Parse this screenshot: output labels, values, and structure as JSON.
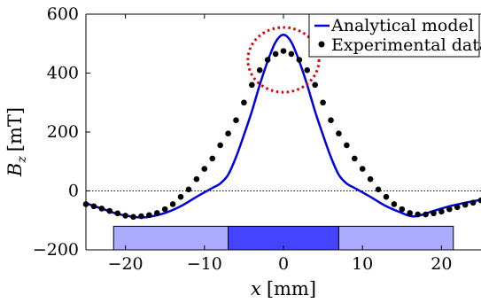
{
  "chart_data": {
    "type": "line",
    "title": "",
    "xlabel": {
      "symbol": "x",
      "unit": "[mm]"
    },
    "ylabel": {
      "symbol": "B",
      "subscript": "z",
      "unit": "[mT]"
    },
    "xlim": [
      -25,
      25
    ],
    "ylim": [
      -200,
      600
    ],
    "xticks": [
      -20,
      -10,
      0,
      10,
      20
    ],
    "yticks": [
      -200,
      0,
      200,
      400,
      600
    ],
    "xtick_labels": [
      "−20",
      "−10",
      "0",
      "10",
      "20"
    ],
    "ytick_labels": [
      "−200",
      "0",
      "200",
      "400",
      "600"
    ],
    "grid": false,
    "legend_position": "top-right",
    "zero_line": {
      "y": 0,
      "style": "dotted"
    },
    "series": [
      {
        "name": "Analytical model",
        "kind": "line",
        "color": "#0000dd",
        "x": [
          -25,
          -23,
          -21,
          -19,
          -18,
          -17,
          -15,
          -13,
          -11,
          -9,
          -8,
          -7,
          -6,
          -5,
          -4,
          -3,
          -2,
          -1,
          0,
          1,
          2,
          3,
          4,
          5,
          6,
          7,
          8,
          9,
          11,
          13,
          15,
          16,
          17,
          19,
          21,
          23,
          25
        ],
        "y": [
          -42,
          -60,
          -78,
          -88,
          -90,
          -88,
          -75,
          -52,
          -20,
          10,
          25,
          55,
          115,
          190,
          270,
          360,
          440,
          505,
          530,
          505,
          440,
          360,
          270,
          190,
          115,
          55,
          25,
          10,
          -20,
          -52,
          -75,
          -85,
          -85,
          -68,
          -52,
          -40,
          -30
        ]
      },
      {
        "name": "Experimental data",
        "kind": "scatter",
        "color": "#000000",
        "x": [
          -25,
          -24,
          -23,
          -22,
          -21,
          -20,
          -19,
          -18,
          -17,
          -16,
          -15,
          -14,
          -13,
          -12,
          -11,
          -10,
          -9,
          -8,
          -7,
          -6,
          -5,
          -4,
          -3,
          -2,
          -1,
          0,
          1,
          2,
          3,
          4,
          5,
          6,
          7,
          8,
          9,
          10,
          11,
          12,
          13,
          14,
          15,
          16,
          17,
          18,
          19,
          20,
          21,
          22,
          23,
          24,
          25
        ],
        "y": [
          -45,
          -52,
          -60,
          -68,
          -76,
          -84,
          -88,
          -86,
          -82,
          -75,
          -62,
          -45,
          -20,
          5,
          40,
          75,
          110,
          155,
          195,
          240,
          300,
          360,
          410,
          445,
          465,
          475,
          465,
          445,
          410,
          360,
          300,
          240,
          195,
          155,
          110,
          75,
          40,
          5,
          -20,
          -45,
          -62,
          -75,
          -80,
          -80,
          -76,
          -70,
          -62,
          -55,
          -47,
          -40,
          -32
        ]
      }
    ],
    "highlight_ellipse": {
      "cx": 0,
      "cy": 445,
      "rx": 4.5,
      "ry": 110,
      "color": "#e00000"
    },
    "magnet_blocks": [
      {
        "x0": -21.5,
        "x1": -7,
        "color": "#aaaaff"
      },
      {
        "x0": -7,
        "x1": 7,
        "color": "#4444ff"
      },
      {
        "x0": 7,
        "x1": 21.5,
        "color": "#aaaaff"
      }
    ],
    "magnet_y_range": [
      -200,
      -120
    ]
  }
}
